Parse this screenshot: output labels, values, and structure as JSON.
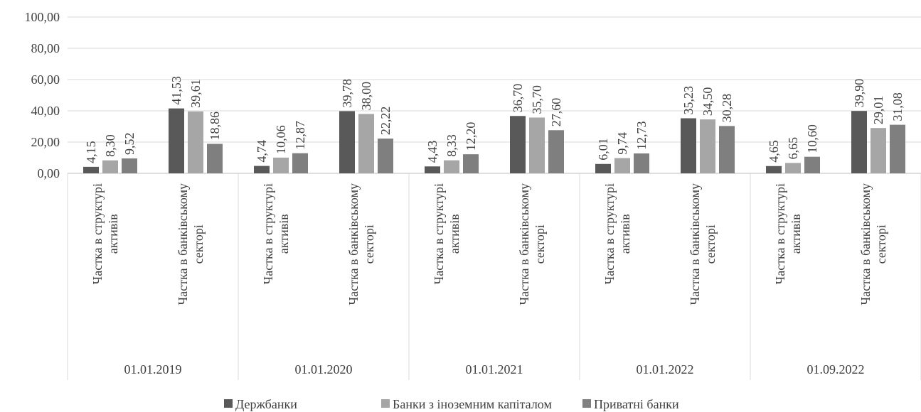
{
  "chart_data": {
    "type": "bar",
    "y_axis": {
      "min": 0,
      "max": 100,
      "step": 20,
      "tick_labels": [
        "0,00",
        "20,00",
        "40,00",
        "60,00",
        "80,00",
        "100,00"
      ]
    },
    "grid": true,
    "legend_position": "bottom",
    "groups": [
      {
        "label": "01.01.2019",
        "categories": [
          {
            "label": "Частка в структурі активів",
            "values": [
              4.15,
              8.3,
              9.52
            ],
            "value_labels": [
              "4,15",
              "8,30",
              "9,52"
            ]
          },
          {
            "label": "Частка в банківському секторі",
            "values": [
              41.53,
              39.61,
              18.86
            ],
            "value_labels": [
              "41,53",
              "39,61",
              "18,86"
            ]
          }
        ]
      },
      {
        "label": "01.01.2020",
        "categories": [
          {
            "label": "Частка в структурі активів",
            "values": [
              4.74,
              10.06,
              12.87
            ],
            "value_labels": [
              "4,74",
              "10,06",
              "12,87"
            ]
          },
          {
            "label": "Частка в банківському секторі",
            "values": [
              39.78,
              38.0,
              22.22
            ],
            "value_labels": [
              "39,78",
              "38,00",
              "22,22"
            ]
          }
        ]
      },
      {
        "label": "01.01.2021",
        "categories": [
          {
            "label": "Частка в структурі активів",
            "values": [
              4.43,
              8.33,
              12.2
            ],
            "value_labels": [
              "4,43",
              "8,33",
              "12,20"
            ]
          },
          {
            "label": "Частка в банківському секторі",
            "values": [
              36.7,
              35.7,
              27.6
            ],
            "value_labels": [
              "36,70",
              "35,70",
              "27,60"
            ]
          }
        ]
      },
      {
        "label": "01.01.2022",
        "categories": [
          {
            "label": "Частка в структурі активів",
            "values": [
              6.01,
              9.74,
              12.73
            ],
            "value_labels": [
              "6,01",
              "9,74",
              "12,73"
            ]
          },
          {
            "label": "Частка в банківському секторі",
            "values": [
              35.23,
              34.5,
              30.28
            ],
            "value_labels": [
              "35,23",
              "34,50",
              "30,28"
            ]
          }
        ]
      },
      {
        "label": "01.09.2022",
        "categories": [
          {
            "label": "Частка в структурі активів",
            "values": [
              4.65,
              6.65,
              10.6
            ],
            "value_labels": [
              "4,65",
              "6,65",
              "10,60"
            ]
          },
          {
            "label": "Частка в банківському секторі",
            "values": [
              39.9,
              29.01,
              31.08
            ],
            "value_labels": [
              "39,90",
              "29,01",
              "31,08"
            ]
          }
        ]
      }
    ],
    "series": [
      {
        "name": "Держбанки",
        "color": "#595959"
      },
      {
        "name": "Банки з іноземним капіталом",
        "color": "#a6a6a6"
      },
      {
        "name": "Приватні банки",
        "color": "#7f7f7f"
      }
    ]
  }
}
